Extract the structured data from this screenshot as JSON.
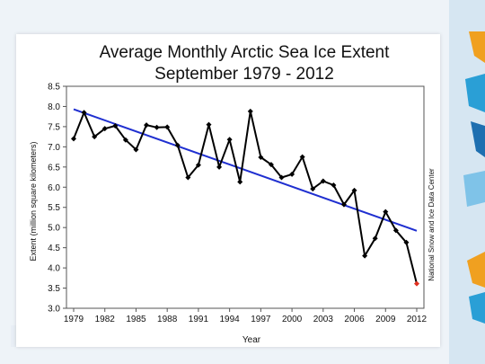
{
  "chart_data": {
    "type": "line",
    "title_line1": "Average Monthly Arctic Sea Ice Extent",
    "title_line2": "September 1979 - 2012",
    "xlabel": "Year",
    "ylabel": "Extent (million square kilometers)",
    "source_credit": "National Snow and Ice Data Center",
    "xlim": [
      1979,
      2012
    ],
    "ylim": [
      3.0,
      8.5
    ],
    "x_ticks": [
      "1979",
      "1982",
      "1985",
      "1988",
      "1991",
      "1994",
      "1997",
      "2000",
      "2003",
      "2006",
      "2009",
      "2012"
    ],
    "y_ticks": [
      "3.0",
      "3.5",
      "4.0",
      "4.5",
      "5.0",
      "5.5",
      "6.0",
      "6.5",
      "7.0",
      "7.5",
      "8.0",
      "8.5"
    ],
    "grid": false,
    "x": [
      1979,
      1980,
      1981,
      1982,
      1983,
      1984,
      1985,
      1986,
      1987,
      1988,
      1989,
      1990,
      1991,
      1992,
      1993,
      1994,
      1995,
      1996,
      1997,
      1998,
      1999,
      2000,
      2001,
      2002,
      2003,
      2004,
      2005,
      2006,
      2007,
      2008,
      2009,
      2010,
      2011,
      2012
    ],
    "series": [
      {
        "values": [
          7.2,
          7.85,
          7.25,
          7.45,
          7.52,
          7.17,
          6.93,
          7.54,
          7.48,
          7.49,
          7.04,
          6.24,
          6.55,
          7.55,
          6.5,
          7.18,
          6.13,
          7.88,
          6.74,
          6.56,
          6.24,
          6.32,
          6.75,
          5.96,
          6.15,
          6.05,
          5.57,
          5.92,
          4.3,
          4.73,
          5.39,
          4.93,
          4.63,
          3.61
        ],
        "color": "#000000",
        "highlight_last_color": "#e03020"
      }
    ],
    "trendline": {
      "x": [
        1979,
        2012
      ],
      "values": [
        7.93,
        4.92
      ],
      "color": "#1f2fd0"
    }
  },
  "decor": {
    "accent_colors": [
      "#f0a020",
      "#2a9fd6",
      "#1e6fb0"
    ]
  }
}
